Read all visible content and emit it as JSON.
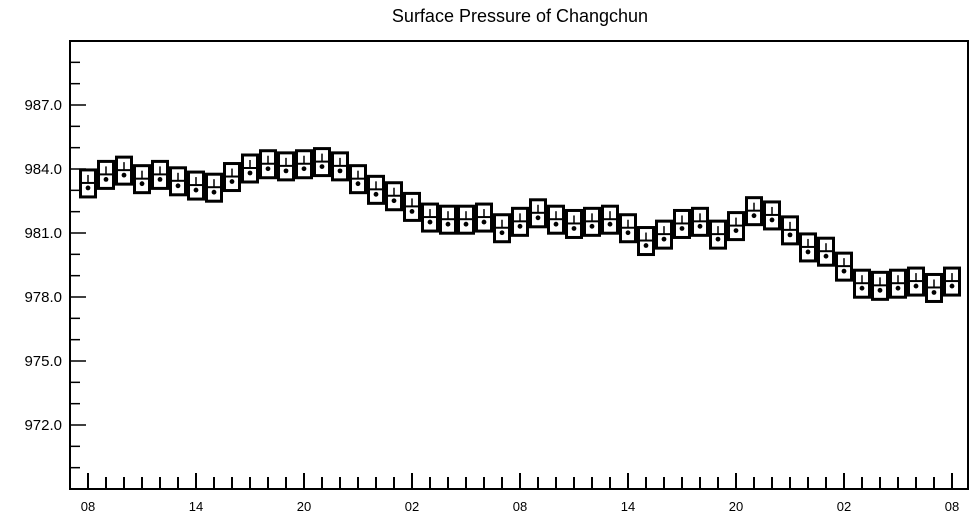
{
  "chart_data": {
    "type": "scatter",
    "title": "Surface Pressure of Changchun",
    "xlabel": "",
    "ylabel": "",
    "ylim": [
      969.0,
      990.0
    ],
    "y_ticks": [
      972.0,
      975.0,
      978.0,
      981.0,
      984.0,
      987.0
    ],
    "y_tick_labels": [
      "972.0",
      "975.0",
      "978.0",
      "981.0",
      "984.0",
      "987.0"
    ],
    "x_tick_labels": [
      "08",
      "14",
      "20",
      "02",
      "08",
      "14",
      "20",
      "02",
      "08"
    ],
    "x_major_every": 6,
    "grid": false,
    "legend": "none",
    "marker": "boxed-glyph",
    "x": [
      0,
      1,
      2,
      3,
      4,
      5,
      6,
      7,
      8,
      9,
      10,
      11,
      12,
      13,
      14,
      15,
      16,
      17,
      18,
      19,
      20,
      21,
      22,
      23,
      24,
      25,
      26,
      27,
      28,
      29,
      30,
      31,
      32,
      33,
      34,
      35,
      36,
      37,
      38,
      39,
      40,
      41,
      42,
      43,
      44,
      45,
      46,
      47,
      48
    ],
    "values": [
      983.3,
      983.7,
      983.9,
      983.5,
      983.7,
      983.4,
      983.2,
      983.1,
      983.6,
      984.0,
      984.2,
      984.1,
      984.2,
      984.3,
      984.1,
      983.5,
      983.0,
      982.7,
      982.2,
      981.7,
      981.6,
      981.6,
      981.7,
      981.2,
      981.5,
      981.9,
      981.6,
      981.4,
      981.5,
      981.6,
      981.2,
      980.6,
      980.9,
      981.4,
      981.5,
      980.9,
      981.3,
      982.0,
      981.8,
      981.1,
      980.3,
      980.1,
      979.4,
      978.6,
      978.5,
      978.6,
      978.7,
      978.4,
      978.7
    ]
  }
}
